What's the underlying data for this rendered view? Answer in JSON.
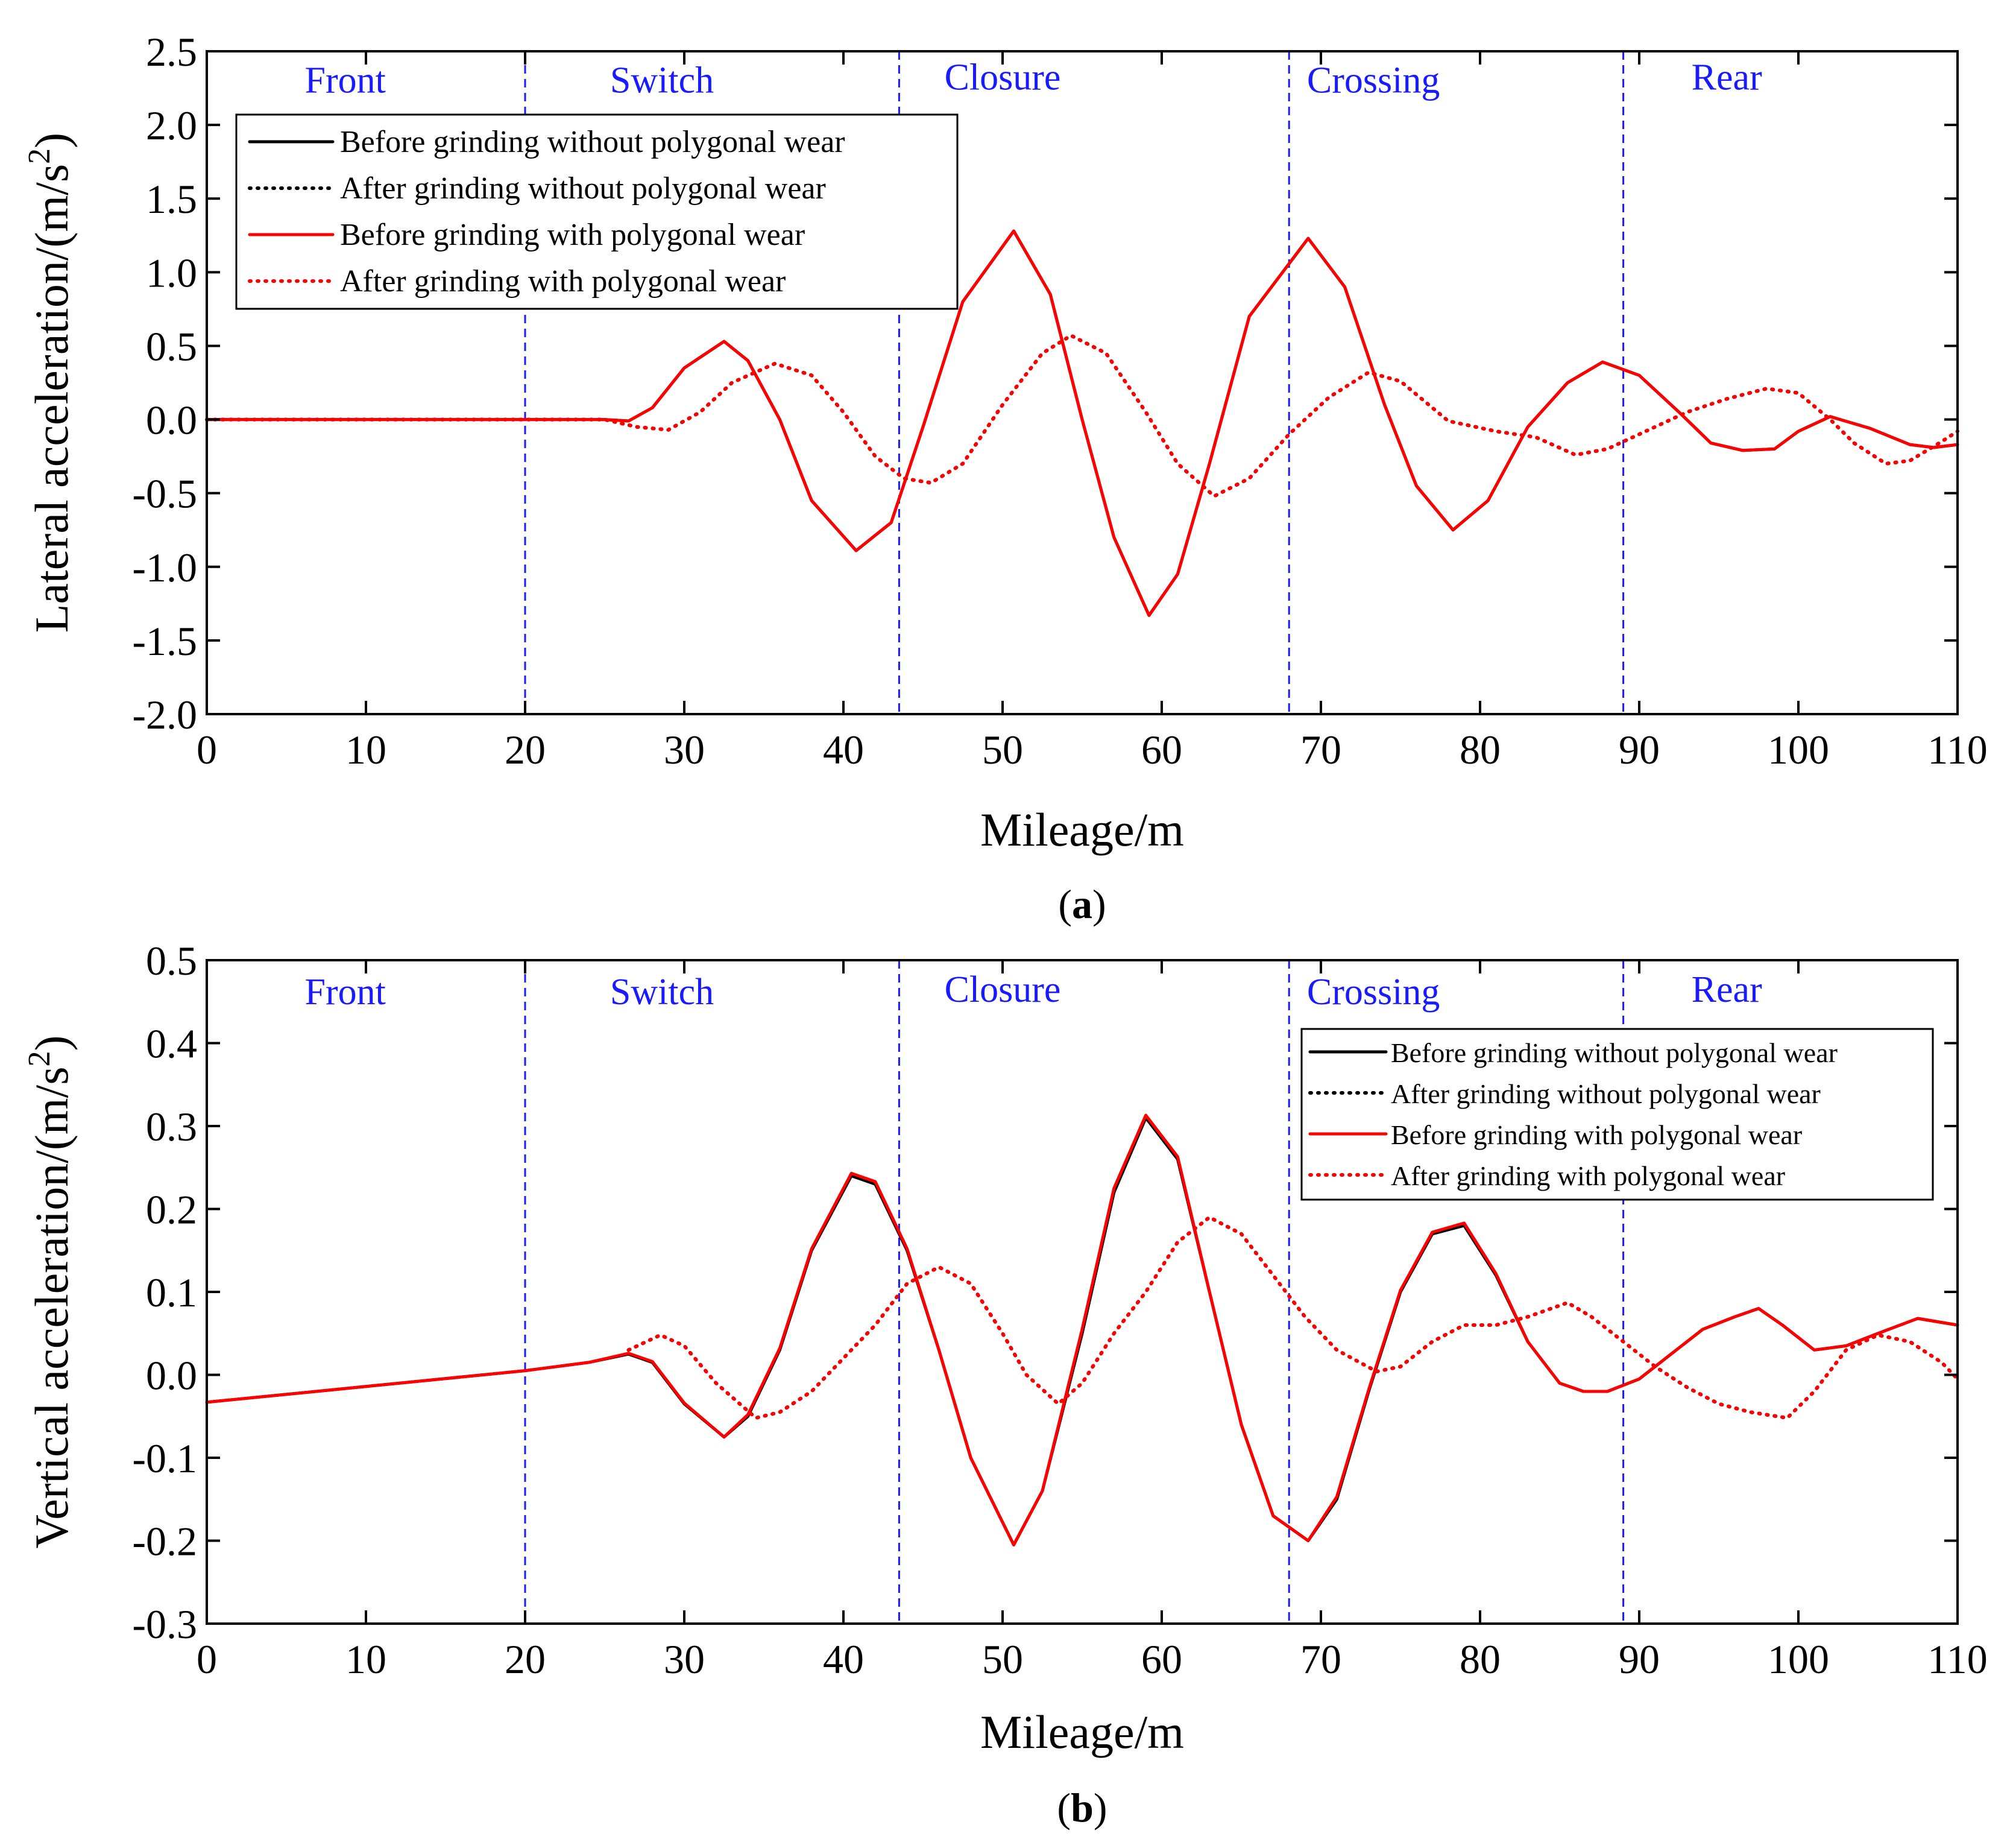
{
  "chart_data": [
    {
      "type": "line",
      "caption": "(a)",
      "caption_letter": "a",
      "xlabel": "Mileage/m",
      "ylabel": "Lateral acceleration/(m/s",
      "ylabel_sup": "2",
      "ylabel_end": ")",
      "xlim": [
        0,
        110
      ],
      "ylim": [
        -2.0,
        2.5
      ],
      "xticks": [
        "0",
        "10",
        "20",
        "30",
        "40",
        "50",
        "60",
        "70",
        "80",
        "90",
        "100",
        "110"
      ],
      "yticks": [
        "-2.0",
        "-1.5",
        "-1.0",
        "-0.5",
        "0.0",
        "0.5",
        "1.0",
        "1.5",
        "2.0",
        "2.5"
      ],
      "regions": {
        "boundaries": [
          20,
          43.5,
          68,
          89
        ],
        "labels": [
          {
            "text": "Front",
            "x": 8.7,
            "y": 2.22
          },
          {
            "text": "Switch",
            "x": 28.6,
            "y": 2.22
          },
          {
            "text": "Closure",
            "x": 50.0,
            "y": 2.24
          },
          {
            "text": "Crossing",
            "x": 73.3,
            "y": 2.22
          },
          {
            "text": "Rear",
            "x": 95.5,
            "y": 2.24
          }
        ]
      },
      "legend": {
        "position": "top-left",
        "entries": [
          "Before grinding without polygonal wear",
          "After grinding without polygonal wear",
          "Before grinding with polygonal wear",
          "After grinding with polygonal wear"
        ]
      },
      "series": [
        {
          "name": "Before grinding without polygonal wear",
          "color": "#000000",
          "style": "solid",
          "x": [
            0,
            20,
            25,
            26.5,
            28,
            30,
            32.5,
            34,
            36,
            38,
            40.8,
            43,
            45,
            47.5,
            50.7,
            53,
            55,
            57,
            59.2,
            61,
            63,
            65.5,
            69.2,
            71.5,
            74,
            76,
            78.3,
            80.5,
            83,
            85.5,
            87.7,
            90,
            92.5,
            94.5,
            96.5,
            98.5,
            100,
            102,
            104.5,
            107,
            108.5,
            110
          ],
          "y": [
            0.0,
            0.0,
            0.0,
            -0.01,
            0.08,
            0.35,
            0.53,
            0.4,
            0.0,
            -0.55,
            -0.89,
            -0.7,
            -0.05,
            0.8,
            1.28,
            0.85,
            0.0,
            -0.8,
            -1.33,
            -1.05,
            -0.3,
            0.7,
            1.23,
            0.9,
            0.1,
            -0.45,
            -0.75,
            -0.55,
            -0.05,
            0.25,
            0.39,
            0.3,
            0.05,
            -0.16,
            -0.21,
            -0.2,
            -0.08,
            0.02,
            -0.06,
            -0.17,
            -0.19,
            -0.17
          ]
        },
        {
          "name": "After grinding without polygonal wear",
          "color": "#000000",
          "style": "dotted",
          "x": [
            0,
            20,
            25,
            27,
            29,
            31,
            33,
            35.7,
            38,
            40,
            42,
            43.8,
            45.5,
            47.5,
            50,
            52.5,
            54.3,
            56.5,
            59,
            61,
            63.3,
            65.5,
            68,
            70.5,
            73,
            75,
            78,
            81,
            83.5,
            86,
            88,
            90,
            93,
            95.5,
            98,
            100,
            102,
            103.5,
            105.5,
            107,
            109,
            110
          ],
          "y": [
            0.0,
            0.0,
            0.0,
            -0.05,
            -0.07,
            0.05,
            0.25,
            0.38,
            0.3,
            0.05,
            -0.25,
            -0.4,
            -0.43,
            -0.3,
            0.1,
            0.45,
            0.57,
            0.45,
            0.05,
            -0.3,
            -0.52,
            -0.4,
            -0.1,
            0.15,
            0.32,
            0.26,
            -0.01,
            -0.08,
            -0.12,
            -0.24,
            -0.2,
            -0.1,
            0.05,
            0.14,
            0.21,
            0.18,
            0.0,
            -0.16,
            -0.3,
            -0.28,
            -0.15,
            -0.08
          ]
        },
        {
          "name": "Before grinding with polygonal wear",
          "color": "#ff0000",
          "style": "solid",
          "x": [
            0,
            20,
            25,
            26.5,
            28,
            30,
            32.5,
            34,
            36,
            38,
            40.8,
            43,
            45,
            47.5,
            50.7,
            53,
            55,
            57,
            59.2,
            61,
            63,
            65.5,
            69.2,
            71.5,
            74,
            76,
            78.3,
            80.5,
            83,
            85.5,
            87.7,
            90,
            92.5,
            94.5,
            96.5,
            98.5,
            100,
            102,
            104.5,
            107,
            108.5,
            110
          ],
          "y": [
            0.0,
            0.0,
            0.0,
            -0.01,
            0.08,
            0.35,
            0.53,
            0.4,
            0.0,
            -0.55,
            -0.89,
            -0.7,
            -0.05,
            0.8,
            1.28,
            0.85,
            0.0,
            -0.8,
            -1.33,
            -1.05,
            -0.3,
            0.7,
            1.23,
            0.9,
            0.1,
            -0.45,
            -0.75,
            -0.55,
            -0.05,
            0.25,
            0.39,
            0.3,
            0.05,
            -0.16,
            -0.21,
            -0.2,
            -0.08,
            0.02,
            -0.06,
            -0.17,
            -0.19,
            -0.17
          ]
        },
        {
          "name": "After grinding with polygonal wear",
          "color": "#ff0000",
          "style": "dotted",
          "x": [
            0,
            20,
            25,
            27,
            29,
            31,
            33,
            35.7,
            38,
            40,
            42,
            43.8,
            45.5,
            47.5,
            50,
            52.5,
            54.3,
            56.5,
            59,
            61,
            63.3,
            65.5,
            68,
            70.5,
            73,
            75,
            78,
            81,
            83.5,
            86,
            88,
            90,
            93,
            95.5,
            98,
            100,
            102,
            103.5,
            105.5,
            107,
            109,
            110
          ],
          "y": [
            0.0,
            0.0,
            0.0,
            -0.05,
            -0.07,
            0.05,
            0.25,
            0.38,
            0.3,
            0.05,
            -0.25,
            -0.4,
            -0.43,
            -0.3,
            0.1,
            0.45,
            0.57,
            0.45,
            0.05,
            -0.3,
            -0.52,
            -0.4,
            -0.1,
            0.15,
            0.32,
            0.26,
            -0.01,
            -0.08,
            -0.12,
            -0.24,
            -0.2,
            -0.1,
            0.05,
            0.14,
            0.21,
            0.18,
            0.0,
            -0.16,
            -0.3,
            -0.28,
            -0.15,
            -0.08
          ]
        }
      ]
    },
    {
      "type": "line",
      "caption": "(b)",
      "caption_letter": "b",
      "xlabel": "Mileage/m",
      "ylabel": "Vertical acceleration/(m/s",
      "ylabel_sup": "2",
      "ylabel_end": ")",
      "xlim": [
        0,
        110
      ],
      "ylim": [
        -0.3,
        0.5
      ],
      "xticks": [
        "0",
        "10",
        "20",
        "30",
        "40",
        "50",
        "60",
        "70",
        "80",
        "90",
        "100",
        "110"
      ],
      "yticks": [
        "-0.3",
        "-0.2",
        "-0.1",
        "0.0",
        "0.1",
        "0.2",
        "0.3",
        "0.4",
        "0.5"
      ],
      "regions": {
        "boundaries": [
          20,
          43.5,
          68,
          89
        ],
        "labels": [
          {
            "text": "Front",
            "x": 8.7,
            "y": 0.447
          },
          {
            "text": "Switch",
            "x": 28.6,
            "y": 0.447
          },
          {
            "text": "Closure",
            "x": 50.0,
            "y": 0.45
          },
          {
            "text": "Crossing",
            "x": 73.3,
            "y": 0.447
          },
          {
            "text": "Rear",
            "x": 95.5,
            "y": 0.45
          }
        ]
      },
      "legend": {
        "position": "top-right",
        "entries": [
          "Before grinding without polygonal wear",
          "After grinding without polygonal wear",
          "Before grinding with polygonal wear",
          "After grinding with polygonal wear"
        ]
      },
      "series": [
        {
          "name": "Before grinding without polygonal wear",
          "color": "#000000",
          "style": "solid",
          "x": [
            0,
            10,
            20,
            24,
            26.5,
            28,
            30,
            32.5,
            34,
            36,
            38,
            40.5,
            42,
            44,
            46,
            48,
            50.7,
            52.5,
            55,
            57,
            59,
            61,
            63,
            65,
            67,
            69.2,
            71,
            73,
            75,
            77,
            79,
            81,
            83,
            85,
            86.5,
            88,
            90,
            92,
            94,
            96,
            97.5,
            99,
            101,
            103,
            105,
            107.5,
            110
          ],
          "y": [
            -0.033,
            -0.014,
            0.005,
            0.015,
            0.025,
            0.015,
            -0.035,
            -0.075,
            -0.05,
            0.03,
            0.15,
            0.24,
            0.23,
            0.15,
            0.03,
            -0.1,
            -0.205,
            -0.14,
            0.05,
            0.22,
            0.31,
            0.26,
            0.1,
            -0.06,
            -0.17,
            -0.2,
            -0.15,
            -0.02,
            0.1,
            0.17,
            0.18,
            0.12,
            0.04,
            -0.01,
            -0.02,
            -0.02,
            -0.005,
            0.025,
            0.055,
            0.07,
            0.08,
            0.06,
            0.03,
            0.035,
            0.05,
            0.068,
            0.06
          ]
        },
        {
          "name": "After grinding without polygonal wear",
          "color": "#000000",
          "style": "dotted",
          "x": [
            26.5,
            28.5,
            30,
            32,
            34.5,
            36,
            38,
            40,
            42,
            44,
            46,
            48,
            50,
            51.5,
            53.5,
            55,
            57,
            59,
            61,
            63,
            65,
            67,
            69,
            71,
            73.5,
            75,
            77,
            79,
            81,
            83,
            85.5,
            87,
            89,
            91,
            93,
            95,
            97,
            99.3,
            101,
            103,
            105,
            107,
            109,
            110
          ],
          "y": [
            0.03,
            0.048,
            0.035,
            -0.01,
            -0.052,
            -0.045,
            -0.02,
            0.02,
            0.06,
            0.11,
            0.13,
            0.11,
            0.05,
            0.0,
            -0.035,
            -0.01,
            0.05,
            0.1,
            0.16,
            0.19,
            0.17,
            0.12,
            0.07,
            0.03,
            0.004,
            0.01,
            0.04,
            0.06,
            0.06,
            0.07,
            0.087,
            0.07,
            0.04,
            0.01,
            -0.015,
            -0.035,
            -0.045,
            -0.052,
            -0.02,
            0.03,
            0.048,
            0.04,
            0.015,
            -0.005
          ]
        },
        {
          "name": "Before grinding with polygonal wear",
          "color": "#ff0000",
          "style": "solid",
          "x": [
            0,
            10,
            20,
            24,
            26.5,
            28,
            30,
            32.5,
            34,
            36,
            38,
            40.5,
            42,
            44,
            46,
            48,
            50.7,
            52.5,
            55,
            57,
            59,
            61,
            63,
            65,
            67,
            69.2,
            71,
            73,
            75,
            77,
            79,
            81,
            83,
            85,
            86.5,
            88,
            90,
            92,
            94,
            96,
            97.5,
            99,
            101,
            103,
            105,
            107.5,
            110
          ],
          "y": [
            -0.033,
            -0.014,
            0.005,
            0.015,
            0.026,
            0.016,
            -0.034,
            -0.075,
            -0.048,
            0.032,
            0.152,
            0.243,
            0.233,
            0.152,
            0.03,
            -0.1,
            -0.205,
            -0.14,
            0.055,
            0.225,
            0.313,
            0.263,
            0.1,
            -0.06,
            -0.17,
            -0.2,
            -0.147,
            -0.018,
            0.102,
            0.172,
            0.183,
            0.122,
            0.04,
            -0.01,
            -0.02,
            -0.02,
            -0.005,
            0.025,
            0.055,
            0.07,
            0.08,
            0.06,
            0.03,
            0.035,
            0.05,
            0.068,
            0.06
          ]
        },
        {
          "name": "After grinding with polygonal wear",
          "color": "#ff0000",
          "style": "dotted",
          "x": [
            26.5,
            28.5,
            30,
            32,
            34.5,
            36,
            38,
            40,
            42,
            44,
            46,
            48,
            50,
            51.5,
            53.5,
            55,
            57,
            59,
            61,
            63,
            65,
            67,
            69,
            71,
            73.5,
            75,
            77,
            79,
            81,
            83,
            85.5,
            87,
            89,
            91,
            93,
            95,
            97,
            99.3,
            101,
            103,
            105,
            107,
            109,
            110
          ],
          "y": [
            0.03,
            0.048,
            0.035,
            -0.01,
            -0.052,
            -0.045,
            -0.02,
            0.02,
            0.06,
            0.11,
            0.13,
            0.11,
            0.05,
            0.0,
            -0.035,
            -0.01,
            0.05,
            0.1,
            0.16,
            0.19,
            0.17,
            0.12,
            0.07,
            0.03,
            0.004,
            0.01,
            0.04,
            0.06,
            0.06,
            0.07,
            0.087,
            0.07,
            0.04,
            0.01,
            -0.015,
            -0.035,
            -0.045,
            -0.052,
            -0.02,
            0.03,
            0.048,
            0.04,
            0.015,
            -0.005
          ]
        }
      ]
    }
  ]
}
